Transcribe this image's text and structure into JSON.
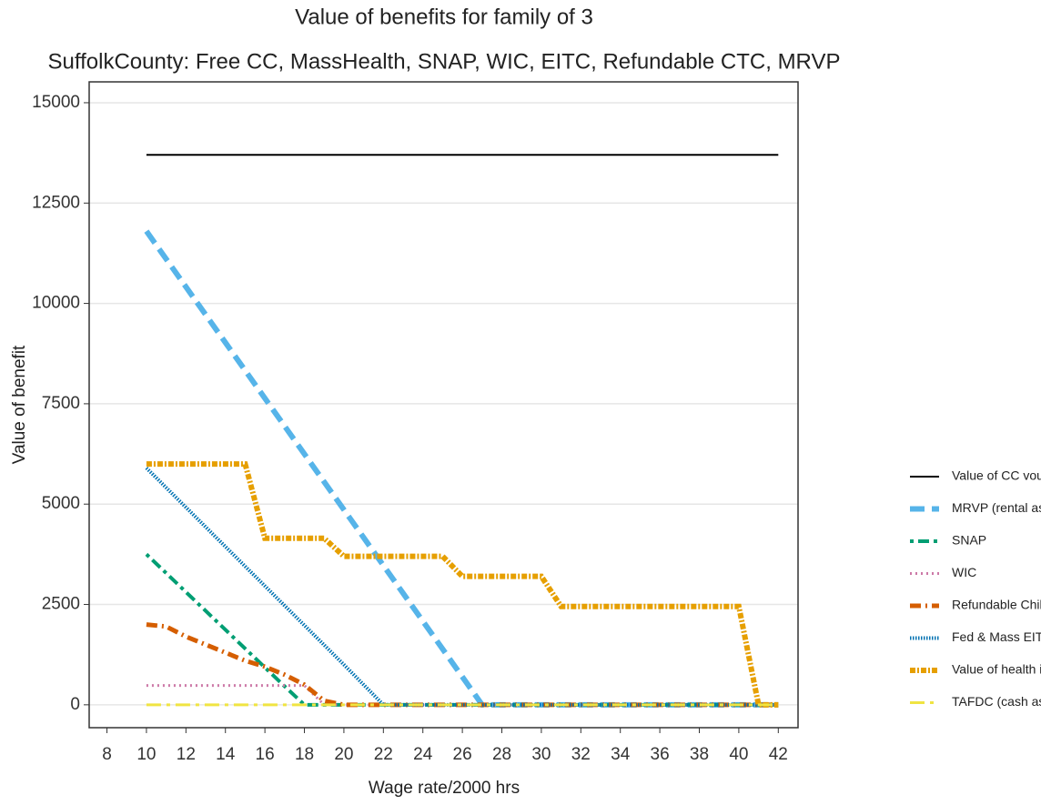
{
  "chart_data": {
    "type": "line",
    "title": "Value of benefits for family of 3",
    "subtitle": "SuffolkCounty: Free CC, MassHealth, SNAP, WIC, EITC, Refundable CTC, MRVP",
    "x_label": "Wage rate/2000 hrs",
    "y_label": "Value of benefit",
    "x": [
      10,
      11,
      12,
      13,
      14,
      15,
      16,
      17,
      18,
      19,
      20,
      21,
      22,
      23,
      24,
      25,
      26,
      27,
      28,
      29,
      30,
      31,
      32,
      33,
      34,
      35,
      36,
      37,
      38,
      39,
      40,
      41,
      42
    ],
    "series": [
      {
        "name": "Value of CC voucher",
        "color": "#000000",
        "values": [
          13700,
          13700,
          13700,
          13700,
          13700,
          13700,
          13700,
          13700,
          13700,
          13700,
          13700,
          13700,
          13700,
          13700,
          13700,
          13700,
          13700,
          13700,
          13700,
          13700,
          13700,
          13700,
          13700,
          13700,
          13700,
          13700,
          13700,
          13700,
          13700,
          13700,
          13700,
          13700,
          13700
        ]
      },
      {
        "name": "MRVP (rental assitance)",
        "color": "#56B4E9",
        "values": [
          11800,
          11106,
          10412,
          9718,
          9024,
          8330,
          7636,
          6942,
          6248,
          5554,
          4860,
          4166,
          3472,
          2778,
          2084,
          1390,
          696,
          0,
          0,
          0,
          0,
          0,
          0,
          0,
          0,
          0,
          0,
          0,
          0,
          0,
          0,
          0,
          0
        ]
      },
      {
        "name": "SNAP",
        "color": "#009E73",
        "values": [
          3750,
          3280,
          2810,
          2340,
          1870,
          1400,
          930,
          460,
          0,
          0,
          0,
          0,
          0,
          0,
          0,
          0,
          0,
          0,
          0,
          0,
          0,
          0,
          0,
          0,
          0,
          0,
          0,
          0,
          0,
          0,
          0,
          0,
          0
        ]
      },
      {
        "name": "WIC",
        "color": "#CC79A7",
        "values": [
          480,
          480,
          480,
          480,
          480,
          480,
          480,
          480,
          480,
          0,
          0,
          0,
          0,
          0,
          0,
          0,
          0,
          0,
          0,
          0,
          0,
          0,
          0,
          0,
          0,
          0,
          0,
          0,
          0,
          0,
          0,
          0,
          0
        ]
      },
      {
        "name": "Refundable Child Tax Credit",
        "color": "#D55E00",
        "values": [
          2000,
          1950,
          1700,
          1500,
          1300,
          1100,
          950,
          750,
          500,
          100,
          0,
          0,
          0,
          0,
          0,
          0,
          0,
          0,
          0,
          0,
          0,
          0,
          0,
          0,
          0,
          0,
          0,
          0,
          0,
          0,
          0,
          0,
          0
        ]
      },
      {
        "name": "Fed & Mass EITC",
        "color": "#0072B2",
        "values": [
          5900,
          5410,
          4920,
          4430,
          3940,
          3450,
          2960,
          2470,
          1980,
          1490,
          1000,
          500,
          0,
          0,
          0,
          0,
          0,
          0,
          0,
          0,
          0,
          0,
          0,
          0,
          0,
          0,
          0,
          0,
          0,
          0,
          0,
          0,
          0
        ]
      },
      {
        "name": "Value of health ins",
        "color": "#E69F00",
        "values": [
          6000,
          6000,
          6000,
          6000,
          6000,
          6000,
          4150,
          4150,
          4150,
          4150,
          3700,
          3700,
          3700,
          3700,
          3700,
          3700,
          3200,
          3200,
          3200,
          3200,
          3200,
          2450,
          2450,
          2450,
          2450,
          2450,
          2450,
          2450,
          2450,
          2450,
          2450,
          0,
          0
        ]
      },
      {
        "name": "TAFDC (cash assistance)",
        "color": "#F0E442",
        "values": [
          0,
          0,
          0,
          0,
          0,
          0,
          0,
          0,
          0,
          0,
          0,
          0,
          0,
          0,
          0,
          0,
          0,
          0,
          0,
          0,
          0,
          0,
          0,
          0,
          0,
          0,
          0,
          0,
          0,
          0,
          0,
          0,
          0
        ]
      }
    ],
    "xlim": [
      7.1,
      43
    ],
    "ylim": [
      -570,
      15520
    ],
    "xticks": [
      8,
      10,
      12,
      14,
      16,
      18,
      20,
      22,
      24,
      26,
      28,
      30,
      32,
      34,
      36,
      38,
      40,
      42
    ],
    "yticks": [
      0,
      2500,
      5000,
      7500,
      10000,
      12500,
      15000
    ],
    "grid": true,
    "legend": "right"
  }
}
